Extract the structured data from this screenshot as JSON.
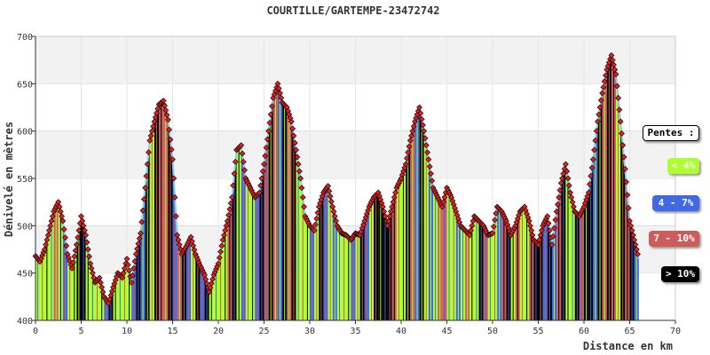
{
  "chart_data": {
    "type": "area",
    "title": "COURTILLE/GARTEMPE-23472742",
    "xlabel": "Distance en km",
    "ylabel": "Dénivelé en mètres",
    "xlim": [
      0,
      70
    ],
    "ylim": [
      400,
      700
    ],
    "xticks": [
      "0",
      "5",
      "10",
      "15",
      "20",
      "25",
      "30",
      "35",
      "40",
      "45",
      "50",
      "55",
      "60",
      "65",
      "70"
    ],
    "yticks": [
      "400",
      "450",
      "500",
      "550",
      "600",
      "650",
      "700"
    ],
    "grid": "horizontal-bands",
    "legend_position": "right",
    "legend": {
      "title": "Pentes :",
      "items": [
        {
          "label": "< 4%",
          "color": "#adff2f"
        },
        {
          "label": "4 - 7%",
          "color": "#4169e1"
        },
        {
          "label": "7 - 10%",
          "color": "#cd5c5c"
        },
        {
          "label": "> 10%",
          "color": "#000000"
        }
      ]
    },
    "x": [
      0,
      0.5,
      1,
      1.5,
      2,
      2.5,
      3,
      3.5,
      4,
      4.5,
      5,
      5.5,
      6,
      6.5,
      7,
      7.5,
      8,
      8.5,
      9,
      9.5,
      10,
      10.5,
      11,
      11.5,
      12,
      12.5,
      13,
      13.5,
      14,
      14.5,
      15,
      15.5,
      16,
      16.5,
      17,
      17.5,
      18,
      18.5,
      19,
      19.5,
      20,
      20.5,
      21,
      21.5,
      22,
      22.5,
      23,
      23.5,
      24,
      24.5,
      25,
      25.5,
      26,
      26.5,
      27,
      27.5,
      28,
      28.5,
      29,
      29.5,
      30,
      30.5,
      31,
      31.5,
      32,
      32.5,
      33,
      33.5,
      34,
      34.5,
      35,
      35.5,
      36,
      36.5,
      37,
      37.5,
      38,
      38.5,
      39,
      39.5,
      40,
      40.5,
      41,
      41.5,
      42,
      42.5,
      43,
      43.5,
      44,
      44.5,
      45,
      45.5,
      46,
      46.5,
      47,
      47.5,
      48,
      48.5,
      49,
      49.5,
      50,
      50.5,
      51,
      51.5,
      52,
      52.5,
      53,
      53.5,
      54,
      54.5,
      55,
      55.5,
      56,
      56.5,
      57,
      57.5,
      58,
      58.5,
      59,
      59.5,
      60,
      60.5,
      61,
      61.5,
      62,
      62.5,
      63,
      63.5,
      64,
      64.5,
      65,
      65.5,
      66
    ],
    "elevation": [
      468,
      462,
      475,
      495,
      515,
      525,
      505,
      470,
      455,
      480,
      510,
      490,
      460,
      440,
      445,
      425,
      418,
      435,
      450,
      445,
      465,
      440,
      470,
      492,
      540,
      590,
      610,
      628,
      632,
      612,
      570,
      490,
      470,
      478,
      488,
      470,
      458,
      448,
      430,
      448,
      460,
      485,
      505,
      530,
      580,
      585,
      550,
      540,
      530,
      535,
      565,
      600,
      635,
      650,
      630,
      625,
      610,
      580,
      550,
      510,
      500,
      495,
      520,
      535,
      542,
      520,
      500,
      492,
      490,
      485,
      492,
      490,
      505,
      520,
      530,
      535,
      520,
      500,
      520,
      540,
      550,
      565,
      590,
      610,
      625,
      600,
      570,
      540,
      530,
      520,
      540,
      530,
      515,
      500,
      495,
      490,
      510,
      505,
      500,
      490,
      492,
      520,
      515,
      505,
      490,
      500,
      515,
      520,
      505,
      485,
      480,
      500,
      510,
      480,
      515,
      545,
      565,
      535,
      515,
      510,
      520,
      535,
      570,
      610,
      640,
      665,
      680,
      660,
      610,
      560,
      505,
      485,
      465
    ],
    "slope_color_index": [
      0,
      0,
      0,
      0,
      2,
      0,
      1,
      0,
      0,
      3,
      3,
      0,
      0,
      0,
      0,
      1,
      3,
      0,
      0,
      0,
      0,
      1,
      3,
      1,
      3,
      0,
      3,
      2,
      2,
      3,
      1,
      2,
      3,
      1,
      0,
      3,
      1,
      3,
      0,
      0,
      0,
      0,
      2,
      3,
      0,
      1,
      0,
      0,
      1,
      3,
      2,
      3,
      2,
      1,
      3,
      2,
      3,
      0,
      0,
      0,
      1,
      0,
      3,
      1,
      0,
      1,
      0,
      0,
      0,
      1,
      0,
      3,
      1,
      0,
      3,
      3,
      3,
      3,
      2,
      0,
      0,
      3,
      2,
      1,
      3,
      0,
      1,
      0,
      2,
      2,
      0,
      0,
      1,
      0,
      2,
      0,
      0,
      3,
      2,
      0,
      0,
      1,
      2,
      3,
      0,
      2,
      0,
      0,
      2,
      3,
      3,
      1,
      3,
      1,
      2,
      3,
      0,
      0,
      3,
      2,
      3,
      3,
      1,
      3,
      2,
      3,
      2,
      0,
      3,
      2,
      3,
      1,
      0
    ]
  }
}
